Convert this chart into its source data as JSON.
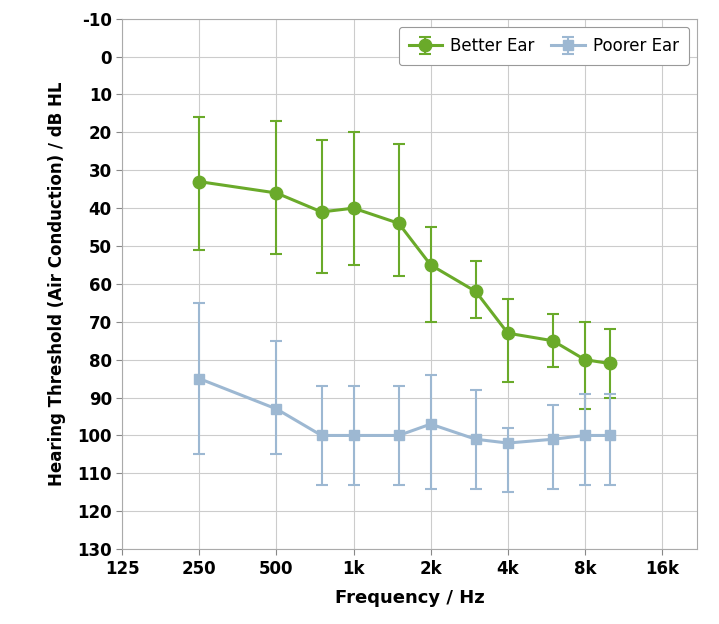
{
  "freq_labels": [
    "125",
    "250",
    "500",
    "1k",
    "2k",
    "4k",
    "8k",
    "16k"
  ],
  "freq_values": [
    125,
    250,
    500,
    1000,
    2000,
    4000,
    8000,
    16000
  ],
  "better_ear_freqs": [
    250,
    500,
    750,
    1000,
    1500,
    2000,
    3000,
    4000,
    6000,
    8000,
    10000
  ],
  "better_ear_values": [
    33,
    36,
    41,
    40,
    44,
    55,
    62,
    73,
    75,
    80,
    81
  ],
  "better_ear_upper_err": [
    18,
    16,
    16,
    15,
    14,
    15,
    7,
    13,
    7,
    13,
    9
  ],
  "better_ear_lower_err": [
    17,
    19,
    19,
    20,
    21,
    10,
    8,
    9,
    7,
    10,
    9
  ],
  "poorer_ear_freqs": [
    250,
    500,
    750,
    1000,
    1500,
    2000,
    3000,
    4000,
    6000,
    8000,
    10000
  ],
  "poorer_ear_values": [
    85,
    93,
    100,
    100,
    100,
    97,
    101,
    102,
    101,
    100,
    100
  ],
  "poorer_ear_upper_err": [
    20,
    12,
    13,
    13,
    13,
    17,
    13,
    13,
    13,
    13,
    13
  ],
  "poorer_ear_lower_err": [
    20,
    18,
    13,
    13,
    13,
    13,
    13,
    4,
    9,
    11,
    11
  ],
  "better_ear_color": "#6aaa2a",
  "poorer_ear_color": "#9db8d2",
  "xlabel": "Frequency / Hz",
  "ylabel": "Hearing Threshold (Air Conduction) / dB HL",
  "ylim_bottom": 130,
  "ylim_top": -10,
  "xlim_left": 125,
  "xlim_right": 22000,
  "plot_bg_color": "#ffffff",
  "figure_bg_color": "#ffffff",
  "grid_color": "#cccccc",
  "legend_better": "Better Ear",
  "legend_poorer": "Poorer Ear",
  "tick_label_fontsize": 12,
  "axis_label_fontsize": 13,
  "legend_fontsize": 12
}
